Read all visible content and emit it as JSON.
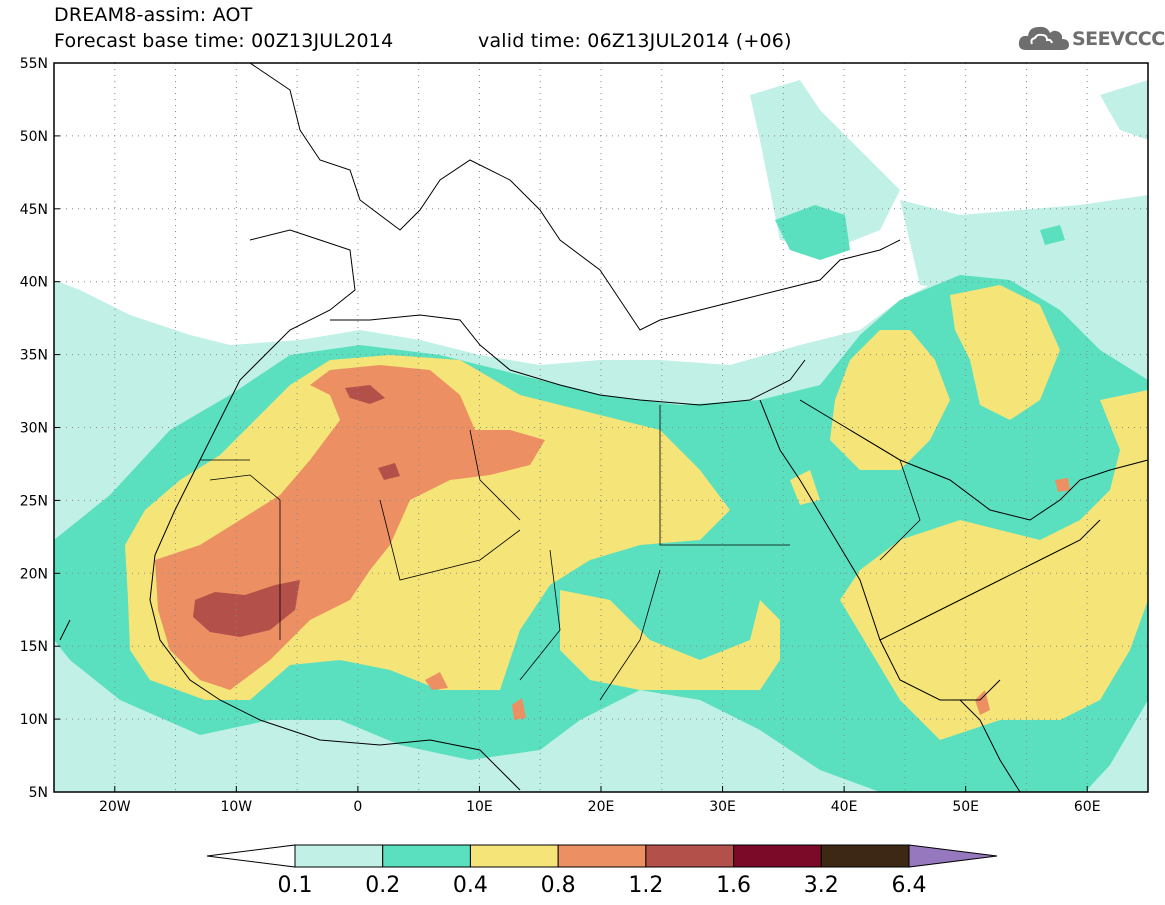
{
  "title": {
    "line1": "DREAM8-assim: AOT",
    "base_time": "Forecast base time: 00Z13JUL2014",
    "valid_time": "valid time: 06Z13JUL2014 (+06)"
  },
  "logo": {
    "text": "SEEVCCC",
    "icon": "cloud-icon"
  },
  "map": {
    "lon_range": [
      -25,
      65
    ],
    "lat_range": [
      5,
      55
    ],
    "lat_labels": [
      {
        "value": 55,
        "label": "55N"
      },
      {
        "value": 50,
        "label": "50N"
      },
      {
        "value": 45,
        "label": "45N"
      },
      {
        "value": 40,
        "label": "40N"
      },
      {
        "value": 35,
        "label": "35N"
      },
      {
        "value": 30,
        "label": "30N"
      },
      {
        "value": 25,
        "label": "25N"
      },
      {
        "value": 20,
        "label": "20N"
      },
      {
        "value": 15,
        "label": "15N"
      },
      {
        "value": 10,
        "label": "10N"
      },
      {
        "value": 5,
        "label": "5N"
      }
    ],
    "lon_labels": [
      {
        "value": -20,
        "label": "20W"
      },
      {
        "value": -10,
        "label": "10W"
      },
      {
        "value": 0,
        "label": "0"
      },
      {
        "value": 10,
        "label": "10E"
      },
      {
        "value": 20,
        "label": "20E"
      },
      {
        "value": 30,
        "label": "30E"
      },
      {
        "value": 40,
        "label": "40E"
      },
      {
        "value": 50,
        "label": "50E"
      },
      {
        "value": 60,
        "label": "60E"
      }
    ],
    "gridlines": "dotted"
  },
  "colorbar": {
    "labels": [
      "0.1",
      "0.2",
      "0.4",
      "0.8",
      "1.2",
      "1.6",
      "3.2",
      "6.4"
    ],
    "colors": [
      "#ffffff",
      "#c0f0e6",
      "#5ae0be",
      "#f5e478",
      "#ec9064",
      "#b4504a",
      "#7a0a28",
      "#3c2814",
      "#9678be"
    ]
  }
}
